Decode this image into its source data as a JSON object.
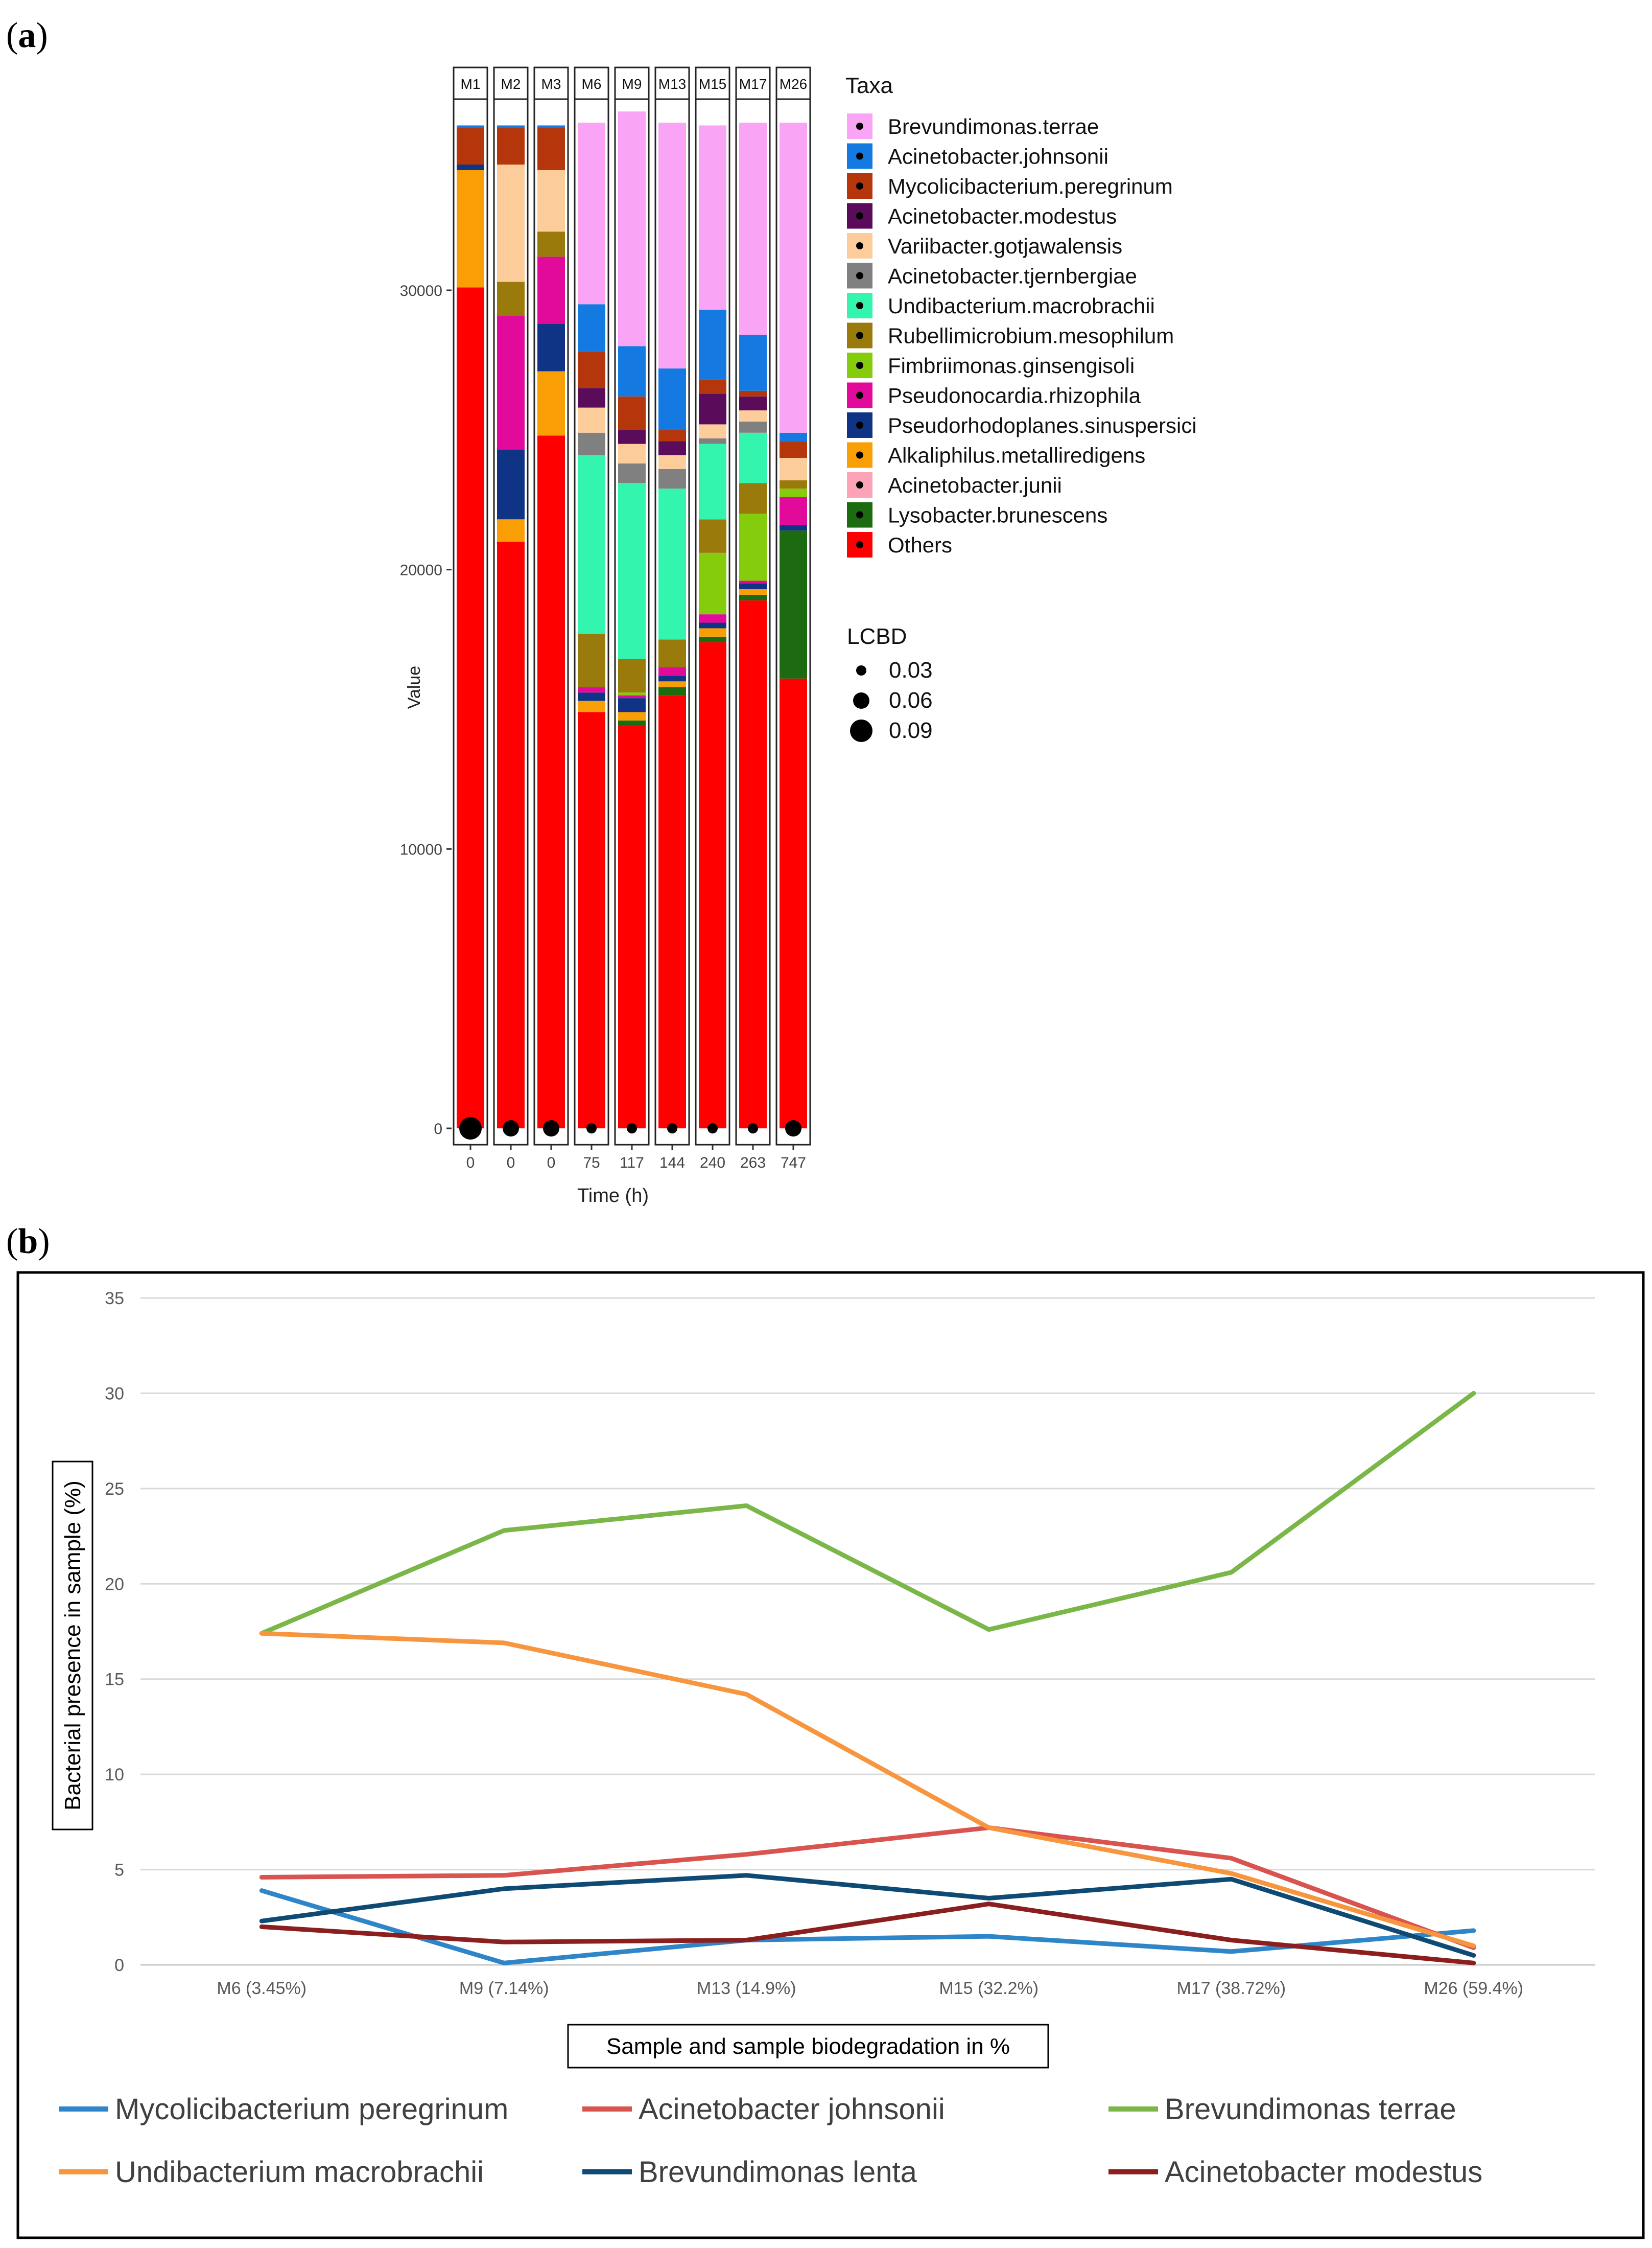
{
  "panel_a": {
    "label_open": "(",
    "label_letter": "a",
    "label_close": ")"
  },
  "panel_b": {
    "label_open": "(",
    "label_letter": "b",
    "label_close": ")"
  },
  "chart_data": [
    {
      "type": "bar",
      "stacked": true,
      "samples": [
        "M1",
        "M2",
        "M3",
        "M6",
        "M9",
        "M13",
        "M15",
        "M17",
        "M26"
      ],
      "times": [
        "0",
        "0",
        "0",
        "75",
        "117",
        "144",
        "240",
        "263",
        "747"
      ],
      "xlabel": "Time (h)",
      "ylabel": "Value",
      "ylim": [
        0,
        36000
      ],
      "yticks": [
        0,
        10000,
        20000,
        30000
      ],
      "legend_title": "Taxa",
      "taxa": [
        {
          "name": "Brevundimonas.terrae",
          "color": "#f9a4f5"
        },
        {
          "name": "Acinetobacter.johnsonii",
          "color": "#1479e0"
        },
        {
          "name": "Mycolicibacterium.peregrinum",
          "color": "#b5360b"
        },
        {
          "name": "Acinetobacter.modestus",
          "color": "#5a0c5a"
        },
        {
          "name": "Variibacter.gotjawalensis",
          "color": "#fccc9b"
        },
        {
          "name": "Acinetobacter.tjernbergiae",
          "color": "#808080"
        },
        {
          "name": "Undibacterium.macrobrachii",
          "color": "#33f5ae"
        },
        {
          "name": "Rubellimicrobium.mesophilum",
          "color": "#9a7a0a"
        },
        {
          "name": "Fimbriimonas.ginsengisoli",
          "color": "#85cc0c"
        },
        {
          "name": "Pseudonocardia.rhizophila",
          "color": "#e10a9a"
        },
        {
          "name": "Pseudorhodoplanes.sinuspersici",
          "color": "#0f3385"
        },
        {
          "name": "Alkaliphilus.metalliredigens",
          "color": "#fa9e06"
        },
        {
          "name": "Acinetobacter.junii",
          "color": "#fca3b8"
        },
        {
          "name": "Lysobacter.brunescens",
          "color": "#1d6b10"
        },
        {
          "name": "Others",
          "color": "#ff0000"
        }
      ],
      "stack_order_bottom_to_top": [
        "Others",
        "Lysobacter.brunescens",
        "Acinetobacter.junii",
        "Alkaliphilus.metalliredigens",
        "Pseudorhodoplanes.sinuspersici",
        "Pseudonocardia.rhizophila",
        "Fimbriimonas.ginsengisoli",
        "Rubellimicrobium.mesophilum",
        "Undibacterium.macrobrachii",
        "Acinetobacter.tjernbergiae",
        "Variibacter.gotjawalensis",
        "Acinetobacter.modestus",
        "Mycolicibacterium.peregrinum",
        "Acinetobacter.johnsonii",
        "Brevundimonas.terrae"
      ],
      "values": {
        "M1": {
          "Others": 30100,
          "Alkaliphilus.metalliredigens": 4200,
          "Pseudorhodoplanes.sinuspersici": 200,
          "Mycolicibacterium.peregrinum": 1300,
          "Acinetobacter.johnsonii": 100
        },
        "M2": {
          "Others": 21000,
          "Alkaliphilus.metalliredigens": 800,
          "Pseudorhodoplanes.sinuspersici": 2500,
          "Pseudonocardia.rhizophila": 4800,
          "Rubellimicrobium.mesophilum": 1200,
          "Variibacter.gotjawalensis": 4200,
          "Mycolicibacterium.peregrinum": 1300,
          "Acinetobacter.johnsonii": 100
        },
        "M3": {
          "Others": 24800,
          "Alkaliphilus.metalliredigens": 2300,
          "Pseudorhodoplanes.sinuspersici": 1700,
          "Pseudonocardia.rhizophila": 2400,
          "Rubellimicrobium.mesophilum": 900,
          "Variibacter.gotjawalensis": 2200,
          "Mycolicibacterium.peregrinum": 1500,
          "Acinetobacter.johnsonii": 100
        },
        "M6": {
          "Others": 14900,
          "Alkaliphilus.metalliredigens": 400,
          "Pseudorhodoplanes.sinuspersici": 300,
          "Pseudonocardia.rhizophila": 200,
          "Rubellimicrobium.mesophilum": 1900,
          "Undibacterium.macrobrachii": 6400,
          "Acinetobacter.tjernbergiae": 800,
          "Variibacter.gotjawalensis": 900,
          "Acinetobacter.modestus": 700,
          "Mycolicibacterium.peregrinum": 1300,
          "Acinetobacter.johnsonii": 1700,
          "Brevundimonas.terrae": 6500
        },
        "M9": {
          "Others": 14400,
          "Lysobacter.brunescens": 200,
          "Alkaliphilus.metalliredigens": 300,
          "Pseudorhodoplanes.sinuspersici": 500,
          "Pseudonocardia.rhizophila": 100,
          "Fimbriimonas.ginsengisoli": 100,
          "Rubellimicrobium.mesophilum": 1200,
          "Undibacterium.macrobrachii": 6300,
          "Acinetobacter.tjernbergiae": 700,
          "Variibacter.gotjawalensis": 700,
          "Acinetobacter.modestus": 500,
          "Mycolicibacterium.peregrinum": 1200,
          "Acinetobacter.johnsonii": 1800,
          "Brevundimonas.terrae": 8400
        },
        "M13": {
          "Others": 15500,
          "Lysobacter.brunescens": 300,
          "Alkaliphilus.metalliredigens": 200,
          "Pseudorhodoplanes.sinuspersici": 200,
          "Pseudonocardia.rhizophila": 300,
          "Rubellimicrobium.mesophilum": 1000,
          "Undibacterium.macrobrachii": 5400,
          "Acinetobacter.tjernbergiae": 700,
          "Variibacter.gotjawalensis": 500,
          "Acinetobacter.modestus": 500,
          "Mycolicibacterium.peregrinum": 400,
          "Acinetobacter.johnsonii": 2200,
          "Brevundimonas.terrae": 8800
        },
        "M15": {
          "Others": 17400,
          "Lysobacter.brunescens": 200,
          "Alkaliphilus.metalliredigens": 300,
          "Pseudorhodoplanes.sinuspersici": 200,
          "Pseudonocardia.rhizophila": 300,
          "Fimbriimonas.ginsengisoli": 2200,
          "Rubellimicrobium.mesophilum": 1200,
          "Undibacterium.macrobrachii": 2700,
          "Acinetobacter.tjernbergiae": 200,
          "Variibacter.gotjawalensis": 500,
          "Acinetobacter.modestus": 1100,
          "Mycolicibacterium.peregrinum": 500,
          "Acinetobacter.johnsonii": 2500,
          "Brevundimonas.terrae": 6600
        },
        "M17": {
          "Others": 18900,
          "Lysobacter.brunescens": 200,
          "Alkaliphilus.metalliredigens": 200,
          "Pseudorhodoplanes.sinuspersici": 200,
          "Pseudonocardia.rhizophila": 100,
          "Fimbriimonas.ginsengisoli": 2400,
          "Rubellimicrobium.mesophilum": 1100,
          "Undibacterium.macrobrachii": 1800,
          "Acinetobacter.tjernbergiae": 400,
          "Variibacter.gotjawalensis": 400,
          "Acinetobacter.modestus": 500,
          "Mycolicibacterium.peregrinum": 200,
          "Acinetobacter.johnsonii": 2000,
          "Brevundimonas.terrae": 7600
        },
        "M26": {
          "Others": 16100,
          "Lysobacter.brunescens": 5300,
          "Pseudorhodoplanes.sinuspersici": 200,
          "Pseudonocardia.rhizophila": 1000,
          "Fimbriimonas.ginsengisoli": 300,
          "Rubellimicrobium.mesophilum": 300,
          "Variibacter.gotjawalensis": 800,
          "Mycolicibacterium.peregrinum": 600,
          "Acinetobacter.johnsonii": 300,
          "Brevundimonas.terrae": 11100
        }
      },
      "lcbd_legend_title": "LCBD",
      "lcbd_legend": [
        "0.03",
        "0.06",
        "0.09"
      ],
      "lcbd_values": [
        0.09,
        0.06,
        0.06,
        0.03,
        0.03,
        0.03,
        0.03,
        0.03,
        0.06
      ]
    },
    {
      "type": "line",
      "categories": [
        "M6 (3.45%)",
        "M9 (7.14%)",
        "M13 (14.9%)",
        "M15 (32.2%)",
        "M17 (38.72%)",
        "M26 (59.4%)"
      ],
      "ylabel": "Bacterial presence in sample (%)",
      "xlabel": "Sample and sample biodegradation in %",
      "ylim": [
        0,
        35
      ],
      "yticks": [
        0,
        5,
        10,
        15,
        20,
        25,
        30,
        35
      ],
      "series": [
        {
          "name": "Mycolicibacterium peregrinum",
          "color": "#2e86c8",
          "values": [
            3.9,
            0.1,
            1.3,
            1.5,
            0.7,
            1.8
          ]
        },
        {
          "name": "Acinetobacter johnsonii",
          "color": "#d9534f",
          "values": [
            4.6,
            4.7,
            5.8,
            7.2,
            5.6,
            0.9
          ]
        },
        {
          "name": "Brevundimonas terrae",
          "color": "#7ab648",
          "values": [
            17.4,
            22.8,
            24.1,
            17.6,
            20.6,
            30.0
          ]
        },
        {
          "name": "Undibacterium macrobrachii",
          "color": "#f7963e",
          "values": [
            17.4,
            16.9,
            14.2,
            7.2,
            4.8,
            1.0
          ]
        },
        {
          "name": "Brevundimonas lenta",
          "color": "#0f4a75",
          "values": [
            2.3,
            4.0,
            4.7,
            3.5,
            4.5,
            0.5
          ]
        },
        {
          "name": "Acinetobacter modestus",
          "color": "#8b1f1f",
          "values": [
            2.0,
            1.2,
            1.3,
            3.2,
            1.3,
            0.1
          ]
        }
      ]
    }
  ]
}
